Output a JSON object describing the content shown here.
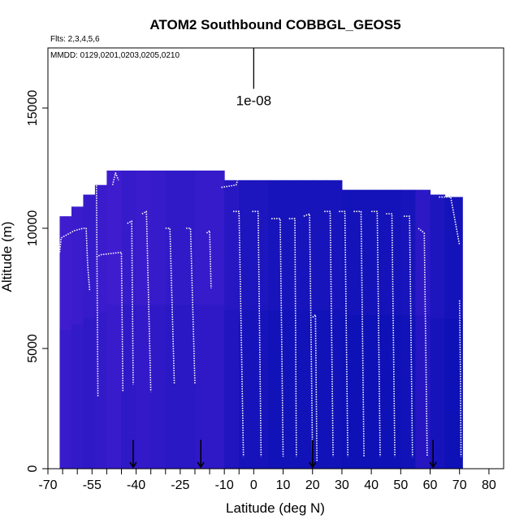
{
  "chart_data": {
    "type": "heatmap",
    "title": "ATOM2 Southbound COBBGL_GEOS5",
    "flights_label": "Flts: 2,3,4,5,6",
    "dates_label": "MMDD: 0129,0201,0203,0205,0210",
    "xlabel": "Latitude (deg N)",
    "ylabel": "Altitude (m)",
    "xlim": [
      -70,
      85
    ],
    "ylim": [
      0,
      17500
    ],
    "x_ticks": [
      -70,
      -55,
      -40,
      -25,
      -10,
      0,
      10,
      20,
      30,
      40,
      50,
      60,
      70,
      80
    ],
    "x_tick_labels": [
      "-70",
      "-55",
      "-40",
      "-25",
      "-10",
      "0",
      "10",
      "20",
      "30",
      "40",
      "50",
      "60",
      "70",
      "80"
    ],
    "x_minor_ticks": [
      -65,
      -60,
      -50,
      -45,
      -35,
      -30,
      -20,
      -15,
      -5
    ],
    "y_ticks": [
      0,
      5000,
      10000,
      15000
    ],
    "y_tick_labels": [
      "0",
      "5000",
      "10000",
      "15000"
    ],
    "scale_label": "1e-08",
    "scale_bar": {
      "x": 0,
      "y0": 15800,
      "y1": 17500
    },
    "arrow_latitudes": [
      -41,
      -18,
      20,
      61
    ],
    "colors": {
      "low": "#0a10b4",
      "mid": "#3a1ccc",
      "high": "#6f25e8",
      "flight_track": "#ffffff",
      "axis": "#000000"
    },
    "curtain_columns": [
      {
        "x0": -66,
        "x1": -62,
        "top": 10500,
        "level": 0.55
      },
      {
        "x0": -62,
        "x1": -58,
        "top": 10900,
        "level": 0.5
      },
      {
        "x0": -58,
        "x1": -54,
        "top": 11400,
        "level": 0.45
      },
      {
        "x0": -54,
        "x1": -50,
        "top": 11800,
        "level": 0.5
      },
      {
        "x0": -50,
        "x1": -45,
        "top": 12400,
        "level": 0.55
      },
      {
        "x0": -45,
        "x1": -40,
        "top": 12400,
        "level": 0.45
      },
      {
        "x0": -40,
        "x1": -35,
        "top": 12400,
        "level": 0.5
      },
      {
        "x0": -35,
        "x1": -30,
        "top": 12400,
        "level": 0.45
      },
      {
        "x0": -30,
        "x1": -25,
        "top": 12400,
        "level": 0.4
      },
      {
        "x0": -25,
        "x1": -20,
        "top": 12400,
        "level": 0.4
      },
      {
        "x0": -20,
        "x1": -15,
        "top": 12400,
        "level": 0.45
      },
      {
        "x0": -15,
        "x1": -10,
        "top": 12400,
        "level": 0.45
      },
      {
        "x0": -10,
        "x1": -5,
        "top": 12000,
        "level": 0.3
      },
      {
        "x0": -5,
        "x1": 0,
        "top": 12000,
        "level": 0.2
      },
      {
        "x0": 0,
        "x1": 5,
        "top": 12000,
        "level": 0.2
      },
      {
        "x0": 5,
        "x1": 10,
        "top": 12000,
        "level": 0.15
      },
      {
        "x0": 10,
        "x1": 15,
        "top": 12000,
        "level": 0.15
      },
      {
        "x0": 15,
        "x1": 20,
        "top": 12000,
        "level": 0.15
      },
      {
        "x0": 20,
        "x1": 25,
        "top": 12000,
        "level": 0.15
      },
      {
        "x0": 25,
        "x1": 30,
        "top": 12000,
        "level": 0.15
      },
      {
        "x0": 30,
        "x1": 35,
        "top": 11600,
        "level": 0.1
      },
      {
        "x0": 35,
        "x1": 40,
        "top": 11600,
        "level": 0.1
      },
      {
        "x0": 40,
        "x1": 45,
        "top": 11600,
        "level": 0.1
      },
      {
        "x0": 45,
        "x1": 50,
        "top": 11600,
        "level": 0.1
      },
      {
        "x0": 50,
        "x1": 55,
        "top": 11600,
        "level": 0.15
      },
      {
        "x0": 55,
        "x1": 60,
        "top": 11600,
        "level": 0.35
      },
      {
        "x0": 60,
        "x1": 65,
        "top": 11400,
        "level": 0.2
      },
      {
        "x0": 65,
        "x1": 71,
        "top": 11300,
        "level": 0.1
      }
    ],
    "flight_tracks": [
      {
        "x": [
          -66,
          -65.5,
          -61,
          -58,
          -57,
          -56.5,
          -55.8
        ],
        "y": [
          9000,
          9600,
          9900,
          10000,
          10000,
          8500,
          7400
        ]
      },
      {
        "x": [
          -55.5,
          -55.2,
          -53.5,
          -53
        ],
        "y": [
          11600,
          11800,
          12000,
          3000
        ]
      },
      {
        "x": [
          -53.5,
          -52,
          -45,
          -44.5
        ],
        "y": [
          8800,
          8900,
          9000,
          3200
        ]
      },
      {
        "x": [
          -48,
          -47,
          -46
        ],
        "y": [
          11800,
          12300,
          12000
        ]
      },
      {
        "x": [
          -43,
          -41.5,
          -41
        ],
        "y": [
          10200,
          10300,
          3500
        ]
      },
      {
        "x": [
          -38,
          -36.5,
          -35
        ],
        "y": [
          10600,
          10700,
          3200
        ]
      },
      {
        "x": [
          -30,
          -28.5,
          -27
        ],
        "y": [
          10000,
          10000,
          3500
        ]
      },
      {
        "x": [
          -23,
          -21.5,
          -20
        ],
        "y": [
          10000,
          10000,
          3500
        ]
      },
      {
        "x": [
          -16,
          -15,
          -14.5
        ],
        "y": [
          9800,
          9900,
          7500
        ]
      },
      {
        "x": [
          -11,
          -6,
          -5.5
        ],
        "y": [
          11700,
          11800,
          12000
        ]
      },
      {
        "x": [
          -7,
          -5,
          -3.5
        ],
        "y": [
          10700,
          10700,
          500
        ]
      },
      {
        "x": [
          -0.5,
          1.5,
          2.5
        ],
        "y": [
          10700,
          10700,
          500
        ]
      },
      {
        "x": [
          6,
          9,
          10
        ],
        "y": [
          10400,
          10400,
          500
        ]
      },
      {
        "x": [
          12,
          14,
          14.5
        ],
        "y": [
          10400,
          10400,
          500
        ]
      },
      {
        "x": [
          17,
          19,
          20
        ],
        "y": [
          10500,
          10600,
          500
        ]
      },
      {
        "x": [
          20,
          21,
          21.5
        ],
        "y": [
          6300,
          6400,
          300
        ]
      },
      {
        "x": [
          24,
          26,
          27
        ],
        "y": [
          10700,
          10700,
          500
        ]
      },
      {
        "x": [
          29,
          31,
          32
        ],
        "y": [
          10700,
          10700,
          500
        ]
      },
      {
        "x": [
          34,
          36.5,
          37.5
        ],
        "y": [
          10700,
          10700,
          500
        ]
      },
      {
        "x": [
          40,
          42,
          43
        ],
        "y": [
          10700,
          10700,
          500
        ]
      },
      {
        "x": [
          45,
          47,
          48
        ],
        "y": [
          10600,
          10600,
          500
        ]
      },
      {
        "x": [
          51,
          53,
          54
        ],
        "y": [
          10500,
          10500,
          500
        ]
      },
      {
        "x": [
          56,
          58,
          59
        ],
        "y": [
          10000,
          9800,
          500
        ]
      },
      {
        "x": [
          63,
          67,
          70
        ],
        "y": [
          11300,
          11300,
          9300
        ]
      },
      {
        "x": [
          70,
          70.3,
          70.5
        ],
        "y": [
          7000,
          4000,
          500
        ]
      }
    ],
    "grid": false,
    "legend": "none"
  }
}
